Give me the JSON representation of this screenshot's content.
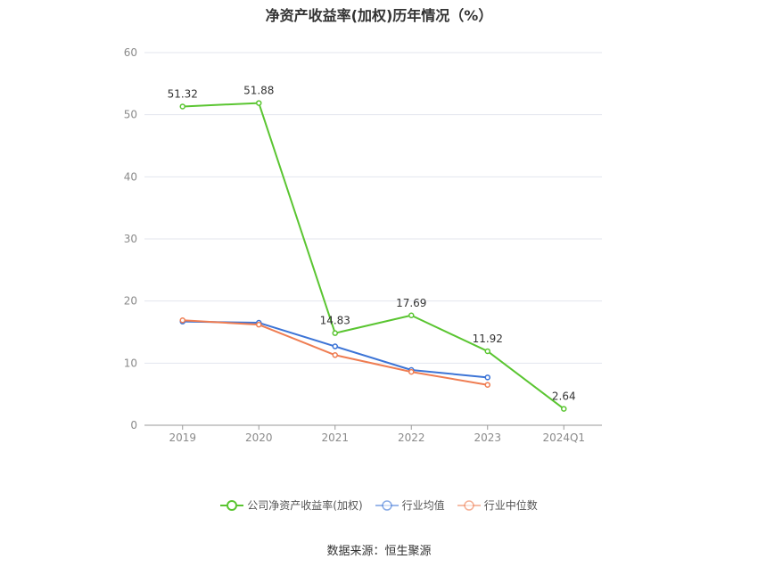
{
  "chart_data": {
    "type": "line",
    "title": "净资产收益率(加权)历年情况（%）",
    "categories": [
      "2019",
      "2020",
      "2021",
      "2022",
      "2023",
      "2024Q1"
    ],
    "yticks": [
      "0",
      "10",
      "20",
      "30",
      "40",
      "50",
      "60"
    ],
    "ylim": [
      0,
      60
    ],
    "grid": true,
    "legend_position": "bottom",
    "series": [
      {
        "name": "公司净资产收益率(加权)",
        "color": "#5ac531",
        "values": [
          51.32,
          51.88,
          14.83,
          17.69,
          11.92,
          2.64
        ],
        "labels": [
          "51.32",
          "51.88",
          "14.83",
          "17.69",
          "11.92",
          "2.64"
        ]
      },
      {
        "name": "行业均值",
        "color": "#3c74d6",
        "values": [
          16.7,
          16.5,
          12.7,
          8.9,
          7.7,
          null
        ]
      },
      {
        "name": "行业中位数",
        "color": "#ef7d52",
        "values": [
          16.9,
          16.2,
          11.3,
          8.6,
          6.5,
          null
        ]
      }
    ]
  },
  "footer": {
    "source": "数据来源：恒生聚源"
  }
}
